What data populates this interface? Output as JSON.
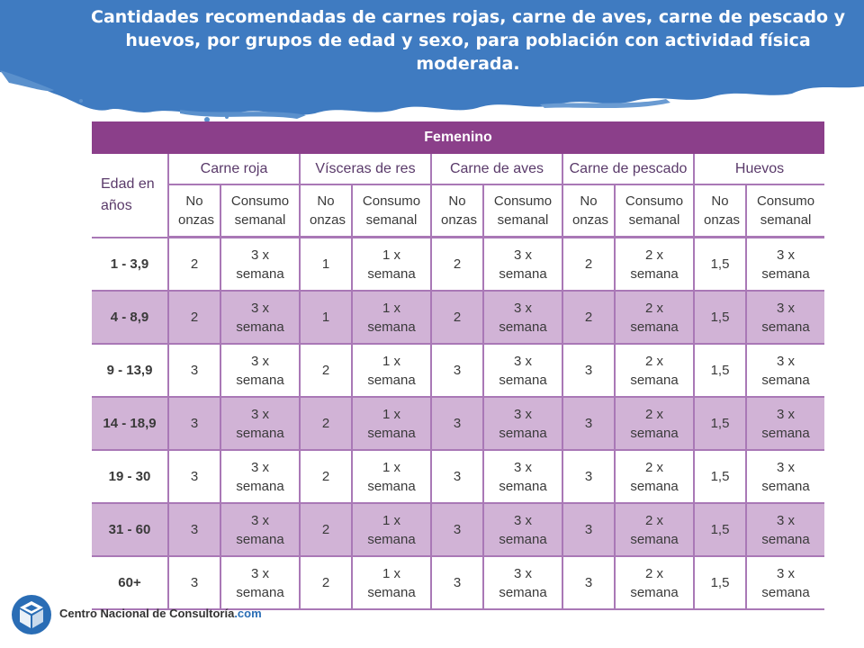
{
  "banner": {
    "title": "Cantidades recomendadas de carnes rojas, carne de aves, carne de pescado y huevos, por grupos de edad y sexo, para población con actividad física moderada.",
    "color": "#3f7bc1"
  },
  "table": {
    "title": "Femenino",
    "age_header": "Edad en años",
    "groups": [
      "Carne roja",
      "Vísceras de res",
      "Carne de aves",
      "Carne de pescado",
      "Huevos"
    ],
    "sub_headers": {
      "onzas": "No onzas",
      "consumo": "Consumo semanal"
    },
    "rows": [
      {
        "age": "1 - 3,9",
        "cells": [
          "2",
          "3 x semana",
          "1",
          "1 x semana",
          "2",
          "3 x semana",
          "2",
          "2 x semana",
          "1,5",
          "3 x semana"
        ]
      },
      {
        "age": "4 - 8,9",
        "cells": [
          "2",
          "3 x semana",
          "1",
          "1 x semana",
          "2",
          "3 x semana",
          "2",
          "2 x semana",
          "1,5",
          "3 x semana"
        ]
      },
      {
        "age": "9 - 13,9",
        "cells": [
          "3",
          "3 x semana",
          "2",
          "1 x semana",
          "3",
          "3 x semana",
          "3",
          "2 x semana",
          "1,5",
          "3 x semana"
        ]
      },
      {
        "age": "14 - 18,9",
        "cells": [
          "3",
          "3 x semana",
          "2",
          "1 x semana",
          "3",
          "3 x semana",
          "3",
          "2 x semana",
          "1,5",
          "3 x semana"
        ]
      },
      {
        "age": "19 - 30",
        "cells": [
          "3",
          "3 x semana",
          "2",
          "1 x semana",
          "3",
          "3 x semana",
          "3",
          "2 x semana",
          "1,5",
          "3 x semana"
        ]
      },
      {
        "age": "31 - 60",
        "cells": [
          "3",
          "3 x semana",
          "2",
          "1 x semana",
          "3",
          "3 x semana",
          "3",
          "2 x semana",
          "1,5",
          "3 x semana"
        ]
      },
      {
        "age": "60+",
        "cells": [
          "3",
          "3 x semana",
          "2",
          "1 x semana",
          "3",
          "3 x semana",
          "3",
          "2 x semana",
          "1,5",
          "3 x semana"
        ]
      }
    ]
  },
  "logo": {
    "name": "Centro Nacional de Consultoría",
    "suffix": ".com",
    "icon": "cnc-cube-logo-icon"
  }
}
